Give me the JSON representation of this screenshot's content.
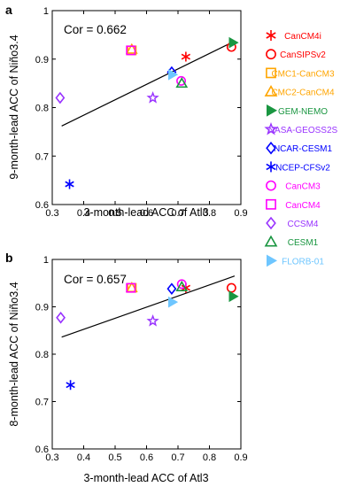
{
  "chart_data": [
    {
      "type": "scatter",
      "panel": "a",
      "annotation": "Cor = 0.662",
      "xlabel": "3-month-lead ACC of Atl3",
      "ylabel": "9-month-lead ACC of Niño3.4",
      "xlim": [
        0.3,
        0.9
      ],
      "ylim": [
        0.6,
        1.0
      ],
      "xticks": [
        "0.3",
        "0.4",
        "0.5",
        "0.6",
        "0.7",
        "0.8",
        "0.9"
      ],
      "yticks": [
        "0.6",
        "0.7",
        "0.8",
        "0.9",
        "1"
      ],
      "regression_line": {
        "x": [
          0.33,
          0.88
        ],
        "y": [
          0.762,
          0.937
        ]
      },
      "points": [
        {
          "model": "CanCM4i",
          "x": 0.725,
          "y": 0.905
        },
        {
          "model": "CanSIPSv2",
          "x": 0.87,
          "y": 0.925
        },
        {
          "model": "CMC1-CanCM3",
          "x": 0.553,
          "y": 0.918
        },
        {
          "model": "CMC2-CanCM4",
          "x": 0.553,
          "y": 0.92
        },
        {
          "model": "GEM-NEMO",
          "x": 0.875,
          "y": 0.934
        },
        {
          "model": "NASA-GEOSS2S",
          "x": 0.62,
          "y": 0.82
        },
        {
          "model": "NCAR-CESM1",
          "x": 0.68,
          "y": 0.873
        },
        {
          "model": "NCEP-CFSv2",
          "x": 0.355,
          "y": 0.642
        },
        {
          "model": "CanCM3",
          "x": 0.71,
          "y": 0.855
        },
        {
          "model": "CanCM4",
          "x": 0.55,
          "y": 0.918
        },
        {
          "model": "CCSM4",
          "x": 0.325,
          "y": 0.82
        },
        {
          "model": "CESM1",
          "x": 0.712,
          "y": 0.85
        },
        {
          "model": "FLORB-01",
          "x": 0.682,
          "y": 0.868
        }
      ]
    },
    {
      "type": "scatter",
      "panel": "b",
      "annotation": "Cor = 0.657",
      "xlabel": "3-month-lead ACC of Atl3",
      "ylabel": "8-month-lead ACC of Niño3.4",
      "xlim": [
        0.3,
        0.9
      ],
      "ylim": [
        0.6,
        1.0
      ],
      "xticks": [
        "0.3",
        "0.4",
        "0.5",
        "0.6",
        "0.7",
        "0.8",
        "0.9"
      ],
      "yticks": [
        "0.6",
        "0.7",
        "0.8",
        "0.9",
        "1"
      ],
      "regression_line": {
        "x": [
          0.33,
          0.88
        ],
        "y": [
          0.836,
          0.965
        ]
      },
      "points": [
        {
          "model": "CanCM4i",
          "x": 0.725,
          "y": 0.94
        },
        {
          "model": "CanSIPSv2",
          "x": 0.87,
          "y": 0.94
        },
        {
          "model": "CMC1-CanCM3",
          "x": 0.553,
          "y": 0.94
        },
        {
          "model": "CMC2-CanCM4",
          "x": 0.553,
          "y": 0.94
        },
        {
          "model": "GEM-NEMO",
          "x": 0.875,
          "y": 0.922
        },
        {
          "model": "NASA-GEOSS2S",
          "x": 0.62,
          "y": 0.87
        },
        {
          "model": "NCAR-CESM1",
          "x": 0.68,
          "y": 0.938
        },
        {
          "model": "NCEP-CFSv2",
          "x": 0.358,
          "y": 0.735
        },
        {
          "model": "CanCM3",
          "x": 0.712,
          "y": 0.948
        },
        {
          "model": "CanCM4",
          "x": 0.55,
          "y": 0.94
        },
        {
          "model": "CCSM4",
          "x": 0.327,
          "y": 0.877
        },
        {
          "model": "CESM1",
          "x": 0.712,
          "y": 0.942
        },
        {
          "model": "FLORB-01",
          "x": 0.682,
          "y": 0.91
        }
      ]
    }
  ],
  "legend": [
    {
      "model": "CanCM4i",
      "marker": "asterisk",
      "color": "#ff0000"
    },
    {
      "model": "CanSIPSv2",
      "marker": "circle",
      "color": "#ff0000"
    },
    {
      "model": "CMC1-CanCM3",
      "marker": "square",
      "color": "#ffa500"
    },
    {
      "model": "CMC2-CanCM4",
      "marker": "triangle-up",
      "color": "#ffa500"
    },
    {
      "model": "GEM-NEMO",
      "marker": "triangle-right-filled",
      "color": "#1a9641"
    },
    {
      "model": "NASA-GEOSS2S",
      "marker": "star",
      "color": "#9933ff"
    },
    {
      "model": "NCAR-CESM1",
      "marker": "diamond",
      "color": "#0000ff"
    },
    {
      "model": "NCEP-CFSv2",
      "marker": "asterisk",
      "color": "#0000ff"
    },
    {
      "model": "CanCM3",
      "marker": "circle",
      "color": "#ff00ff"
    },
    {
      "model": "CanCM4",
      "marker": "square",
      "color": "#ff00ff"
    },
    {
      "model": "CCSM4",
      "marker": "diamond",
      "color": "#9933ff"
    },
    {
      "model": "CESM1",
      "marker": "triangle-up",
      "color": "#1a9641"
    },
    {
      "model": "FLORB-01",
      "marker": "triangle-right-filled",
      "color": "#6ec6ff"
    }
  ]
}
